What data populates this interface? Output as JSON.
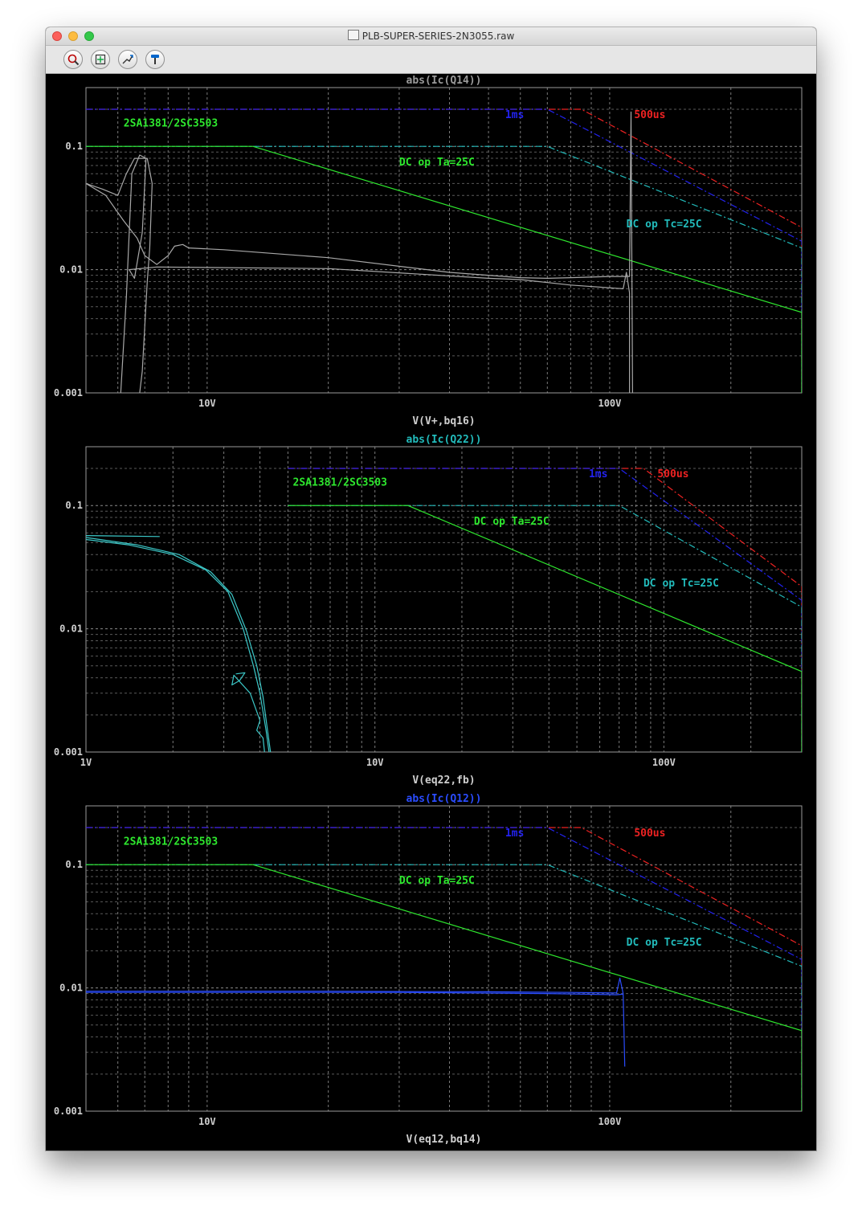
{
  "window": {
    "title": "PLB-SUPER-SERIES-2N3055.raw",
    "toolbar": [
      {
        "name": "zoom-to-rectangle-button",
        "icon": "magnifier-icon"
      },
      {
        "name": "autorange-button",
        "icon": "autorange-icon"
      },
      {
        "name": "pan-button",
        "icon": "pan-icon"
      },
      {
        "name": "cursor-button",
        "icon": "probe-icon"
      }
    ]
  },
  "chart_data": [
    {
      "type": "line",
      "title": "abs(Ic(Q14))",
      "title_color": "#9a9a9a",
      "xlabel": "V(V+,bq16)",
      "x_scale": "log",
      "y_scale": "log",
      "xlim": [
        5,
        300
      ],
      "ylim": [
        0.001,
        0.3
      ],
      "x_ticks": [
        {
          "value": 10,
          "label": "10V"
        },
        {
          "value": 100,
          "label": "100V"
        }
      ],
      "y_ticks": [
        {
          "value": 0.1,
          "label": "0.1"
        },
        {
          "value": 0.01,
          "label": "0.01"
        },
        {
          "value": 0.001,
          "label": "0.001"
        }
      ],
      "annotations": [
        {
          "text": "2SA1381/2SC3503",
          "color": "#2ee82e",
          "x": 6.2,
          "y": 0.145
        },
        {
          "text": "1ms",
          "color": "#2222ee",
          "x": 55,
          "y": 0.17
        },
        {
          "text": "500us",
          "color": "#ee2222",
          "x": 115,
          "y": 0.17
        },
        {
          "text": "DC op Ta=25C",
          "color": "#2ee82e",
          "x": 30,
          "y": 0.07
        },
        {
          "text": "DC op Tc=25C",
          "color": "#22bbbb",
          "x": 110,
          "y": 0.022
        }
      ],
      "series": [
        {
          "color": "#ee2222",
          "dash": "dashdot",
          "points": [
            [
              5,
              0.2
            ],
            [
              85,
              0.2
            ],
            [
              300,
              0.022
            ],
            [
              300,
              0.001
            ]
          ]
        },
        {
          "color": "#2222ee",
          "dash": "dashdot",
          "points": [
            [
              5,
              0.2
            ],
            [
              70,
              0.2
            ],
            [
              300,
              0.017
            ],
            [
              300,
              0.001
            ]
          ]
        },
        {
          "color": "#22bbbb",
          "dash": "dashdot",
          "points": [
            [
              5,
              0.1
            ],
            [
              70,
              0.1
            ],
            [
              300,
              0.015
            ],
            [
              300,
              0.001
            ]
          ]
        },
        {
          "color": "#2ee82e",
          "dash": "solid",
          "points": [
            [
              5,
              0.1
            ],
            [
              13,
              0.1
            ],
            [
              300,
              0.0045
            ],
            [
              300,
              0.001
            ]
          ]
        },
        {
          "color": "#a8a8a8",
          "dash": "solid",
          "points": [
            [
              5,
              0.05
            ],
            [
              5.6,
              0.04
            ],
            [
              6.2,
              0.025
            ],
            [
              6.7,
              0.018
            ],
            [
              7,
              0.013
            ],
            [
              7.5,
              0.011
            ],
            [
              8,
              0.013
            ],
            [
              8.3,
              0.0155
            ],
            [
              8.7,
              0.016
            ],
            [
              9,
              0.015
            ],
            [
              11,
              0.0145
            ],
            [
              20,
              0.0125
            ],
            [
              40,
              0.0095
            ],
            [
              60,
              0.0086
            ],
            [
              70,
              0.0085
            ],
            [
              80,
              0.0086
            ],
            [
              100,
              0.0088
            ],
            [
              112,
              0.0088
            ],
            [
              113,
              0.19
            ],
            [
              114,
              0.001
            ]
          ]
        },
        {
          "color": "#a8a8a8",
          "dash": "solid",
          "points": [
            [
              5,
              0.05
            ],
            [
              5.5,
              0.045
            ],
            [
              6,
              0.04
            ],
            [
              6.3,
              0.06
            ],
            [
              6.6,
              0.08
            ],
            [
              7.1,
              0.08
            ],
            [
              7.3,
              0.05
            ],
            [
              7.2,
              0.015
            ],
            [
              7.1,
              0.008
            ],
            [
              6.9,
              0.0015
            ],
            [
              6.8,
              0.001
            ]
          ]
        },
        {
          "color": "#a8a8a8",
          "dash": "solid",
          "points": [
            [
              6.1,
              0.001
            ],
            [
              6.3,
              0.006
            ],
            [
              6.5,
              0.06
            ],
            [
              6.8,
              0.085
            ],
            [
              7.05,
              0.08
            ],
            [
              6.9,
              0.02
            ],
            [
              6.6,
              0.0085
            ],
            [
              6.4,
              0.01
            ],
            [
              7.5,
              0.0105
            ],
            [
              20,
              0.0102
            ],
            [
              50,
              0.0085
            ],
            [
              60,
              0.0083
            ],
            [
              80,
              0.0075
            ],
            [
              108,
              0.007
            ],
            [
              110,
              0.0095
            ],
            [
              112,
              0.0065
            ],
            [
              112,
              0.001
            ]
          ]
        }
      ]
    },
    {
      "type": "line",
      "title": "abs(Ic(Q22))",
      "title_color": "#22bbbb",
      "xlabel": "V(eq22,fb)",
      "x_scale": "log",
      "y_scale": "log",
      "xlim": [
        1,
        300
      ],
      "ylim": [
        0.001,
        0.3
      ],
      "x_ticks": [
        {
          "value": 1,
          "label": "1V"
        },
        {
          "value": 10,
          "label": "10V"
        },
        {
          "value": 100,
          "label": "100V"
        }
      ],
      "y_ticks": [
        {
          "value": 0.1,
          "label": "0.1"
        },
        {
          "value": 0.01,
          "label": "0.01"
        },
        {
          "value": 0.001,
          "label": "0.001"
        }
      ],
      "annotations": [
        {
          "text": "2SA1381/2SC3503",
          "color": "#2ee82e",
          "x": 5.2,
          "y": 0.145
        },
        {
          "text": "1ms",
          "color": "#2222ee",
          "x": 55,
          "y": 0.17
        },
        {
          "text": "500us",
          "color": "#ee2222",
          "x": 95,
          "y": 0.17
        },
        {
          "text": "DC op Ta=25C",
          "color": "#2ee82e",
          "x": 22,
          "y": 0.07
        },
        {
          "text": "DC op Tc=25C",
          "color": "#22bbbb",
          "x": 85,
          "y": 0.022
        }
      ],
      "series": [
        {
          "color": "#ee2222",
          "dash": "dashdot",
          "points": [
            [
              5,
              0.2
            ],
            [
              85,
              0.2
            ],
            [
              300,
              0.022
            ],
            [
              300,
              0.001
            ]
          ]
        },
        {
          "color": "#2222ee",
          "dash": "dashdot",
          "points": [
            [
              5,
              0.2
            ],
            [
              70,
              0.2
            ],
            [
              300,
              0.017
            ],
            [
              300,
              0.001
            ]
          ]
        },
        {
          "color": "#22bbbb",
          "dash": "dashdot",
          "points": [
            [
              5,
              0.1
            ],
            [
              70,
              0.1
            ],
            [
              300,
              0.015
            ],
            [
              300,
              0.001
            ]
          ]
        },
        {
          "color": "#2ee82e",
          "dash": "solid",
          "points": [
            [
              5,
              0.1
            ],
            [
              13,
              0.1
            ],
            [
              300,
              0.0045
            ],
            [
              300,
              0.001
            ]
          ]
        },
        {
          "color": "#3cc8c8",
          "dash": "solid",
          "points": [
            [
              1,
              0.053
            ],
            [
              1.4,
              0.048
            ],
            [
              2,
              0.04
            ],
            [
              2.6,
              0.03
            ],
            [
              3.1,
              0.02
            ],
            [
              3.5,
              0.01
            ],
            [
              3.8,
              0.005
            ],
            [
              4,
              0.003
            ],
            [
              4.2,
              0.0015
            ],
            [
              4.3,
              0.001
            ]
          ]
        },
        {
          "color": "#3cc8c8",
          "dash": "solid",
          "points": [
            [
              1,
              0.055
            ],
            [
              1.5,
              0.048
            ],
            [
              2.1,
              0.04
            ],
            [
              2.7,
              0.029
            ],
            [
              3.2,
              0.019
            ],
            [
              3.6,
              0.0095
            ],
            [
              3.9,
              0.005
            ],
            [
              4.1,
              0.0028
            ],
            [
              4.25,
              0.0015
            ],
            [
              4.35,
              0.001
            ]
          ]
        },
        {
          "color": "#3cc8c8",
          "dash": "solid",
          "points": [
            [
              1,
              0.057
            ],
            [
              1.8,
              0.056
            ]
          ]
        },
        {
          "color": "#3cc8c8",
          "dash": "solid",
          "points": [
            [
              3.3,
              0.0043
            ],
            [
              3.55,
              0.0044
            ],
            [
              3.4,
              0.0038
            ],
            [
              3.2,
              0.0035
            ],
            [
              3.25,
              0.0042
            ],
            [
              3.7,
              0.003
            ],
            [
              4.0,
              0.0018
            ],
            [
              3.9,
              0.0015
            ],
            [
              4.1,
              0.0013
            ],
            [
              4.15,
              0.001
            ]
          ]
        }
      ]
    },
    {
      "type": "line",
      "title": "abs(Ic(Q12))",
      "title_color": "#2a4cff",
      "xlabel": "V(eq12,bq14)",
      "x_scale": "log",
      "y_scale": "log",
      "xlim": [
        5,
        300
      ],
      "ylim": [
        0.001,
        0.3
      ],
      "x_ticks": [
        {
          "value": 10,
          "label": "10V"
        },
        {
          "value": 100,
          "label": "100V"
        }
      ],
      "y_ticks": [
        {
          "value": 0.1,
          "label": "0.1"
        },
        {
          "value": 0.01,
          "label": "0.01"
        },
        {
          "value": 0.001,
          "label": "0.001"
        }
      ],
      "annotations": [
        {
          "text": "2SA1381/2SC3503",
          "color": "#2ee82e",
          "x": 6.2,
          "y": 0.145
        },
        {
          "text": "1ms",
          "color": "#2222ee",
          "x": 55,
          "y": 0.17
        },
        {
          "text": "500us",
          "color": "#ee2222",
          "x": 115,
          "y": 0.17
        },
        {
          "text": "DC op Ta=25C",
          "color": "#2ee82e",
          "x": 30,
          "y": 0.07
        },
        {
          "text": "DC op Tc=25C",
          "color": "#22bbbb",
          "x": 110,
          "y": 0.022
        }
      ],
      "series": [
        {
          "color": "#ee2222",
          "dash": "dashdot",
          "points": [
            [
              5,
              0.2
            ],
            [
              85,
              0.2
            ],
            [
              300,
              0.022
            ],
            [
              300,
              0.001
            ]
          ]
        },
        {
          "color": "#2222ee",
          "dash": "dashdot",
          "points": [
            [
              5,
              0.2
            ],
            [
              70,
              0.2
            ],
            [
              300,
              0.017
            ],
            [
              300,
              0.001
            ]
          ]
        },
        {
          "color": "#22bbbb",
          "dash": "dashdot",
          "points": [
            [
              5,
              0.1
            ],
            [
              70,
              0.1
            ],
            [
              300,
              0.015
            ],
            [
              300,
              0.001
            ]
          ]
        },
        {
          "color": "#2ee82e",
          "dash": "solid",
          "points": [
            [
              5,
              0.1
            ],
            [
              13,
              0.1
            ],
            [
              300,
              0.0045
            ],
            [
              300,
              0.001
            ]
          ]
        },
        {
          "color": "#2a4cff",
          "dash": "solid",
          "points": [
            [
              5,
              0.0094
            ],
            [
              20,
              0.0094
            ],
            [
              50,
              0.0093
            ],
            [
              80,
              0.0092
            ],
            [
              104,
              0.0091
            ],
            [
              106,
              0.012
            ],
            [
              108,
              0.009
            ],
            [
              109,
              0.0023
            ]
          ]
        },
        {
          "color": "#2a4cff",
          "dash": "solid",
          "points": [
            [
              5,
              0.0092
            ],
            [
              30,
              0.0092
            ],
            [
              70,
              0.009
            ],
            [
              104,
              0.0088
            ],
            [
              108,
              0.0089
            ]
          ]
        }
      ]
    }
  ]
}
